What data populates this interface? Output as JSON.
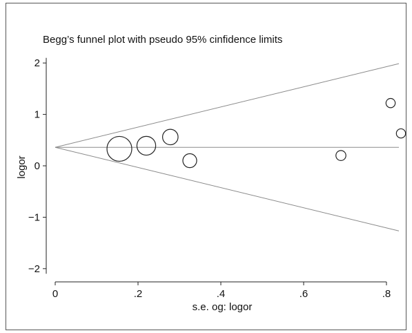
{
  "chart_data": {
    "type": "scatter",
    "title": "Begg’s funnel plot with pseudo 95% cinfidence limits",
    "xlabel": "s.e. og: logor",
    "ylabel": "logor",
    "xlim": [
      0,
      0.83
    ],
    "ylim": [
      -2.15,
      2.15
    ],
    "x_ticks": [
      {
        "value": 0,
        "label": "0"
      },
      {
        "value": 0.2,
        "label": ".2"
      },
      {
        "value": 0.4,
        "label": ".4"
      },
      {
        "value": 0.6,
        "label": ".6"
      },
      {
        "value": 0.8,
        "label": ".8"
      }
    ],
    "y_ticks": [
      {
        "value": 2,
        "label": "2"
      },
      {
        "value": 1,
        "label": "1"
      },
      {
        "value": 0,
        "label": "0"
      },
      {
        "value": -1,
        "label": "−1"
      },
      {
        "value": -2,
        "label": "−2"
      }
    ],
    "pooled_estimate": 0.36,
    "confidence_z": 1.96,
    "grid": false,
    "points": [
      {
        "se": 0.155,
        "logor": 0.33,
        "weight": 1.0
      },
      {
        "se": 0.22,
        "logor": 0.39,
        "weight": 0.5
      },
      {
        "se": 0.278,
        "logor": 0.56,
        "weight": 0.3
      },
      {
        "se": 0.325,
        "logor": 0.1,
        "weight": 0.22
      },
      {
        "se": 0.69,
        "logor": 0.2,
        "weight": 0.08
      },
      {
        "se": 0.81,
        "logor": 1.22,
        "weight": 0.06
      },
      {
        "se": 0.835,
        "logor": 0.63,
        "weight": 0.06
      }
    ]
  }
}
